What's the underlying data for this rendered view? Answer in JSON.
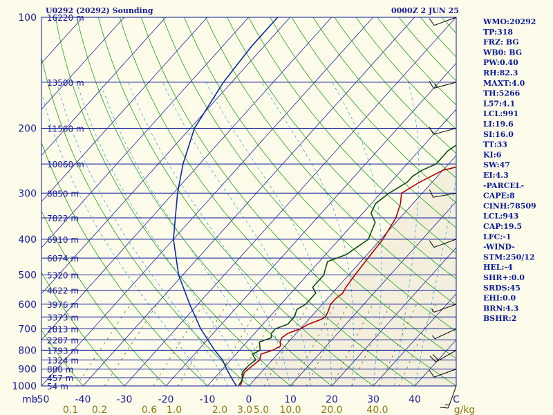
{
  "header": {
    "title_left": "U0292 (20292) Sounding",
    "title_right": "0000Z  2 JUN 25"
  },
  "colors": {
    "isobar": "#0a1a9a",
    "temp": "#b00000",
    "dewpoint": "#0b4a10",
    "parcel": "#0a2aa0",
    "isotherm": "#20209a",
    "dry_adiabat": "#1aa01a",
    "moist_adiabat": "#40a8d8",
    "mixing_ratio": "#6a6a10",
    "background": "#fdfbea",
    "shaded": "#f3efdc"
  },
  "chart_data": {
    "type": "line",
    "title": "U0292 (20292) Sounding",
    "subtitle": "0000Z  2 JUN 25",
    "xlabel": "C",
    "ylabel": "mb",
    "xlim": [
      -50,
      50
    ],
    "ylim": [
      1000,
      100
    ],
    "y_scale": "log",
    "pressure_ticks": [
      100,
      200,
      300,
      400,
      500,
      600,
      700,
      800,
      900,
      1000
    ],
    "temperature_ticks": [
      "-50",
      "-40",
      "-30",
      "-20",
      "-10",
      "0",
      "10",
      "20",
      "30",
      "40",
      "C"
    ],
    "temperature_tick_values": [
      -50,
      -40,
      -30,
      -20,
      -10,
      0,
      10,
      20,
      30,
      40,
      50
    ],
    "mixing_ratio_labels": [
      "0.1",
      "0.2",
      "0.6",
      "1.0",
      "2.0",
      "3.0",
      "5.0",
      "10.0",
      "20.0",
      "40.0",
      "g/kg"
    ],
    "mixing_ratio_label_x": [
      -43,
      -36,
      -24,
      -18,
      -7,
      -1,
      3,
      10,
      20,
      31,
      52
    ],
    "height_levels": [
      {
        "p": 100,
        "label": "16220 m"
      },
      {
        "p": 150,
        "label": "13500 m"
      },
      {
        "p": 200,
        "label": "11560 m"
      },
      {
        "p": 250,
        "label": "10060 m"
      },
      {
        "p": 300,
        "label": "8850 m"
      },
      {
        "p": 350,
        "label": "7822 m"
      },
      {
        "p": 400,
        "label": "6910 m"
      },
      {
        "p": 450,
        "label": "6074 m"
      },
      {
        "p": 500,
        "label": "5320 m"
      },
      {
        "p": 550,
        "label": "4622 m"
      },
      {
        "p": 600,
        "label": "3976 m"
      },
      {
        "p": 650,
        "label": "3373 m"
      },
      {
        "p": 700,
        "label": "2813 m"
      },
      {
        "p": 750,
        "label": "2287 m"
      },
      {
        "p": 800,
        "label": "1793 m"
      },
      {
        "p": 850,
        "label": "1324 m"
      },
      {
        "p": 900,
        "label": "880 m"
      },
      {
        "p": 950,
        "label": "457 m"
      },
      {
        "p": 1000,
        "label": "54 m"
      }
    ],
    "series": [
      {
        "name": "Temperature",
        "points": [
          [
            1000,
            -2
          ],
          [
            960,
            -3
          ],
          [
            920,
            -4
          ],
          [
            880,
            -3.5
          ],
          [
            850,
            -3
          ],
          [
            820,
            -4
          ],
          [
            800,
            -2
          ],
          [
            780,
            -1
          ],
          [
            760,
            -2
          ],
          [
            740,
            -2.5
          ],
          [
            720,
            -2
          ],
          [
            700,
            0
          ],
          [
            680,
            1
          ],
          [
            660,
            3
          ],
          [
            650,
            3.5
          ],
          [
            630,
            3
          ],
          [
            600,
            2
          ],
          [
            580,
            2
          ],
          [
            560,
            2.5
          ],
          [
            540,
            2
          ],
          [
            500,
            1.5
          ],
          [
            450,
            1
          ],
          [
            400,
            0.5
          ],
          [
            350,
            -1
          ],
          [
            320,
            -3
          ],
          [
            300,
            -5
          ],
          [
            280,
            -3
          ],
          [
            260,
            0
          ],
          [
            250,
            5
          ],
          [
            240,
            9
          ],
          [
            220,
            11
          ],
          [
            200,
            16
          ],
          [
            180,
            19
          ],
          [
            160,
            23
          ],
          [
            150,
            27
          ],
          [
            130,
            33
          ],
          [
            110,
            41
          ],
          [
            100,
            45
          ]
        ]
      },
      {
        "name": "Dewpoint",
        "points": [
          [
            1000,
            -2.5
          ],
          [
            960,
            -3
          ],
          [
            920,
            -4.5
          ],
          [
            880,
            -4.5
          ],
          [
            850,
            -4
          ],
          [
            820,
            -6
          ],
          [
            800,
            -5
          ],
          [
            780,
            -6
          ],
          [
            760,
            -7
          ],
          [
            740,
            -5
          ],
          [
            720,
            -6
          ],
          [
            700,
            -6
          ],
          [
            680,
            -4
          ],
          [
            650,
            -4
          ],
          [
            620,
            -5
          ],
          [
            600,
            -4
          ],
          [
            560,
            -4
          ],
          [
            540,
            -6
          ],
          [
            500,
            -6
          ],
          [
            480,
            -7
          ],
          [
            460,
            -8
          ],
          [
            440,
            -5
          ],
          [
            420,
            -4
          ],
          [
            400,
            -3
          ],
          [
            380,
            -4
          ],
          [
            360,
            -5
          ],
          [
            340,
            -8
          ],
          [
            320,
            -9
          ],
          [
            300,
            -8
          ],
          [
            280,
            -6
          ],
          [
            270,
            -6
          ],
          [
            260,
            -5
          ],
          [
            250,
            -3
          ],
          [
            240,
            -3
          ],
          [
            230,
            -3
          ],
          [
            220,
            -2
          ],
          [
            210,
            -1
          ],
          [
            200,
            1
          ],
          [
            190,
            3
          ],
          [
            170,
            6
          ],
          [
            150,
            10
          ],
          [
            130,
            14
          ],
          [
            110,
            19
          ],
          [
            100,
            22
          ]
        ]
      },
      {
        "name": "Parcel",
        "points": [
          [
            1000,
            -3
          ],
          [
            950,
            -6
          ],
          [
            900,
            -9
          ],
          [
            850,
            -12
          ],
          [
            800,
            -16
          ],
          [
            700,
            -24
          ],
          [
            600,
            -32
          ],
          [
            500,
            -41
          ],
          [
            400,
            -50
          ],
          [
            300,
            -59
          ],
          [
            250,
            -64
          ],
          [
            200,
            -69
          ],
          [
            150,
            -72
          ],
          [
            120,
            -73
          ],
          [
            100,
            -73
          ]
        ]
      }
    ],
    "wind_barbs": [
      {
        "p": 100,
        "dir": 250,
        "spd": 10
      },
      {
        "p": 150,
        "dir": 255,
        "spd": 15
      },
      {
        "p": 200,
        "dir": 255,
        "spd": 10
      },
      {
        "p": 300,
        "dir": 260,
        "spd": 10
      },
      {
        "p": 400,
        "dir": 250,
        "spd": 10
      },
      {
        "p": 600,
        "dir": 250,
        "spd": 5
      },
      {
        "p": 700,
        "dir": 245,
        "spd": 5
      },
      {
        "p": 800,
        "dir": 240,
        "spd": 20
      },
      {
        "p": 900,
        "dir": 250,
        "spd": 10
      },
      {
        "p": 1000,
        "dir": 200,
        "spd": 15
      }
    ]
  },
  "indices": [
    "WMO:20292",
    "TP:318",
    "FRZ: BG",
    "WB0: BG",
    "PW:0.40",
    "RH:82.3",
    "MAXT:4.0",
    "TH:5266",
    "L57:4.1",
    "LCL:991",
    "LI:19.6",
    "SI:16.0",
    "TT:33",
    "KI:6",
    "SW:47",
    "EI:4.3",
    "-PARCEL-",
    "CAPE:8",
    "CINH:78509",
    "LCL:943",
    "CAP:19.5",
    "LFC:-1",
    "-WIND-",
    "STM:250/12",
    "HEL:-4",
    "SHR+:0.0",
    "SRDS:45",
    "EHI:0.0",
    "BRN:4.3",
    "BSHR:2"
  ]
}
